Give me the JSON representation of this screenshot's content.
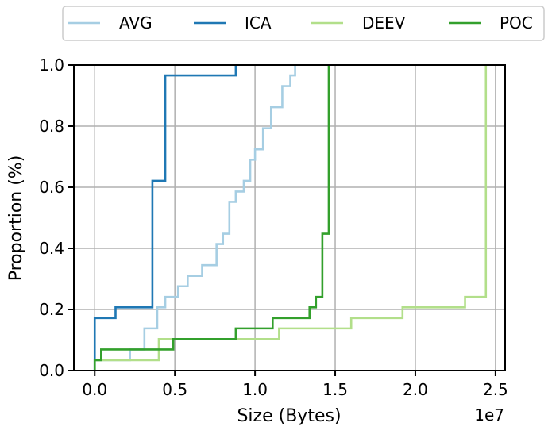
{
  "chart_data": {
    "type": "line",
    "xlabel": "Size (Bytes)",
    "ylabel": "Proportion (%)",
    "x_offset_label": "1e7",
    "x_scale_multiplier": 10000000,
    "xlim": [
      -0.13,
      2.56
    ],
    "ylim": [
      0.0,
      1.0
    ],
    "grid": true,
    "legend_position": "top, above plot",
    "x_ticks": [
      0.0,
      0.5,
      1.0,
      1.5,
      2.0,
      2.5
    ],
    "x_tick_labels": [
      "0.0",
      "0.5",
      "1.0",
      "1.5",
      "2.0",
      "2.5"
    ],
    "y_ticks": [
      0.0,
      0.2,
      0.4,
      0.6,
      0.8,
      1.0
    ],
    "y_tick_labels": [
      "0.0",
      "0.2",
      "0.4",
      "0.6",
      "0.8",
      "1.0"
    ],
    "series": [
      {
        "name": "AVG",
        "color": "#a6cee3",
        "step": true,
        "x": [
          0.0,
          0.0,
          0.22,
          0.31,
          0.39,
          0.44,
          0.52,
          0.58,
          0.67,
          0.76,
          0.8,
          0.84,
          0.88,
          0.93,
          0.97,
          1.0,
          1.05,
          1.1,
          1.17,
          1.22,
          1.25
        ],
        "y": [
          0.0,
          0.034,
          0.069,
          0.138,
          0.207,
          0.241,
          0.276,
          0.31,
          0.345,
          0.414,
          0.448,
          0.552,
          0.586,
          0.621,
          0.69,
          0.724,
          0.793,
          0.862,
          0.931,
          0.966,
          1.0
        ]
      },
      {
        "name": "ICA",
        "color": "#1f78b4",
        "step": true,
        "x": [
          0.0,
          0.0,
          0.13,
          0.36,
          0.44,
          0.88
        ],
        "y": [
          0.0,
          0.172,
          0.207,
          0.621,
          0.966,
          1.0
        ]
      },
      {
        "name": "DEEV",
        "color": "#b2df8a",
        "step": true,
        "x": [
          0.0,
          0.0,
          0.4,
          1.15,
          1.6,
          1.92,
          2.31,
          2.44
        ],
        "y": [
          0.0,
          0.034,
          0.103,
          0.138,
          0.172,
          0.207,
          0.241,
          1.0
        ]
      },
      {
        "name": "POC",
        "color": "#33a02c",
        "step": true,
        "x": [
          0.0,
          0.0,
          0.04,
          0.49,
          0.88,
          1.11,
          1.34,
          1.38,
          1.42,
          1.46
        ],
        "y": [
          0.0,
          0.034,
          0.069,
          0.103,
          0.138,
          0.172,
          0.207,
          0.241,
          0.448,
          1.0
        ]
      }
    ]
  }
}
